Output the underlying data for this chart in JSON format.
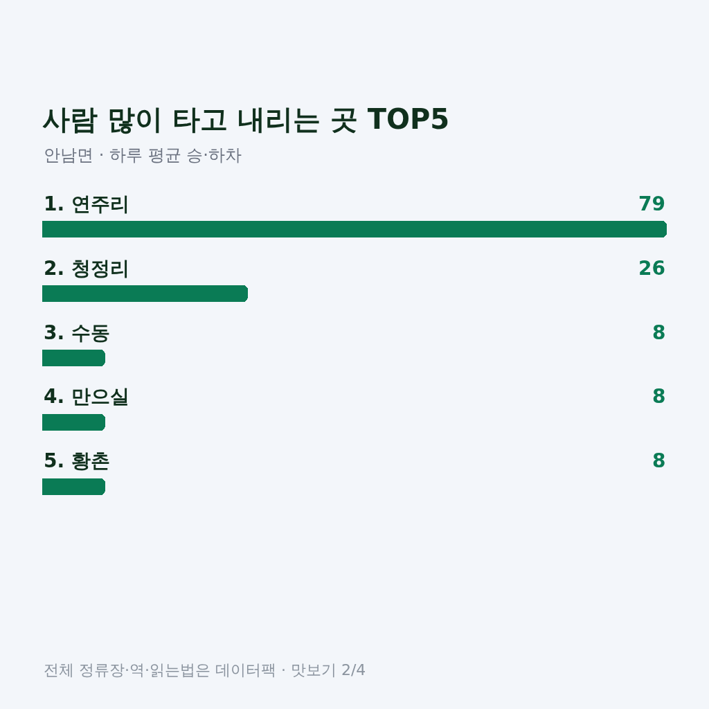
{
  "chart_data": {
    "type": "bar",
    "orientation": "horizontal",
    "title": "사람 많이 타고 내리는 곳 TOP5",
    "subtitle": "안남면 · 하루 평균 승·하차",
    "categories": [
      "1. 연주리",
      "2. 청정리",
      "3. 수동",
      "4. 만으실",
      "5. 황촌"
    ],
    "values": [
      79,
      26,
      8,
      8,
      8
    ],
    "color": "#0a7b55",
    "xlim": [
      0,
      79
    ],
    "data_labels": true,
    "tick_labels": "y",
    "annotations": [
      "전체 정류장·역·읽는법은 데이터팩 · 맛보기 2/4"
    ]
  }
}
